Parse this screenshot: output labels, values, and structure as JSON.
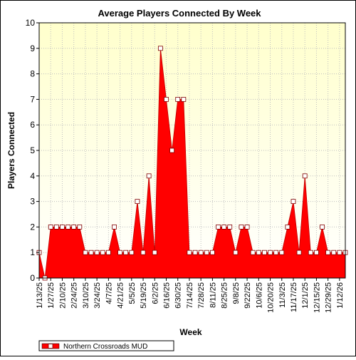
{
  "chart_data": {
    "type": "area",
    "title": "Average Players Connected By Week",
    "xlabel": "Week",
    "ylabel": "Players Connected",
    "ylim": [
      0,
      10
    ],
    "yticks": [
      0,
      1,
      2,
      3,
      4,
      5,
      6,
      7,
      8,
      9,
      10
    ],
    "grid": true,
    "legend_position": "bottom-left",
    "colors": {
      "fill": "#ff0000",
      "plot_bg_top": "#ffffcc",
      "marker": "#ffffff",
      "border": "#000000"
    },
    "x_tick_labels": [
      "1/13/25",
      "1/27/25",
      "2/10/25",
      "2/24/25",
      "3/10/25",
      "3/24/25",
      "4/7/25",
      "4/21/25",
      "5/5/25",
      "5/19/25",
      "6/2/25",
      "6/16/25",
      "6/30/25",
      "7/14/25",
      "7/28/25",
      "8/11/25",
      "8/25/25",
      "9/8/25",
      "9/22/25",
      "10/6/25",
      "10/20/25",
      "11/3/25",
      "11/17/25",
      "12/1/25",
      "12/15/25",
      "12/29/25",
      "1/12/26"
    ],
    "x": [
      "1/13/25",
      "1/20/25",
      "1/27/25",
      "2/3/25",
      "2/10/25",
      "2/17/25",
      "2/24/25",
      "3/3/25",
      "3/10/25",
      "3/17/25",
      "3/24/25",
      "3/31/25",
      "4/7/25",
      "4/14/25",
      "4/21/25",
      "4/28/25",
      "5/5/25",
      "5/12/25",
      "5/19/25",
      "5/26/25",
      "6/2/25",
      "6/9/25",
      "6/16/25",
      "6/23/25",
      "6/30/25",
      "7/7/25",
      "7/14/25",
      "7/21/25",
      "7/28/25",
      "8/4/25",
      "8/11/25",
      "8/18/25",
      "8/25/25",
      "9/1/25",
      "9/8/25",
      "9/15/25",
      "9/22/25",
      "9/29/25",
      "10/6/25",
      "10/13/25",
      "10/20/25",
      "10/27/25",
      "11/3/25",
      "11/10/25",
      "11/17/25",
      "11/24/25",
      "12/1/25",
      "12/8/25",
      "12/15/25",
      "12/22/25",
      "12/29/25",
      "1/5/26",
      "1/12/26",
      "1/19/26"
    ],
    "series": [
      {
        "name": "Northern Crossroads MUD",
        "values": [
          1,
          0,
          2,
          2,
          2,
          2,
          2,
          2,
          1,
          1,
          1,
          1,
          1,
          2,
          1,
          1,
          1,
          3,
          1,
          4,
          1,
          9,
          7,
          5,
          7,
          7,
          1,
          1,
          1,
          1,
          1,
          2,
          2,
          2,
          1,
          2,
          2,
          1,
          1,
          1,
          1,
          1,
          1,
          2,
          3,
          1,
          4,
          1,
          1,
          2,
          1,
          1,
          1,
          1
        ]
      }
    ]
  }
}
